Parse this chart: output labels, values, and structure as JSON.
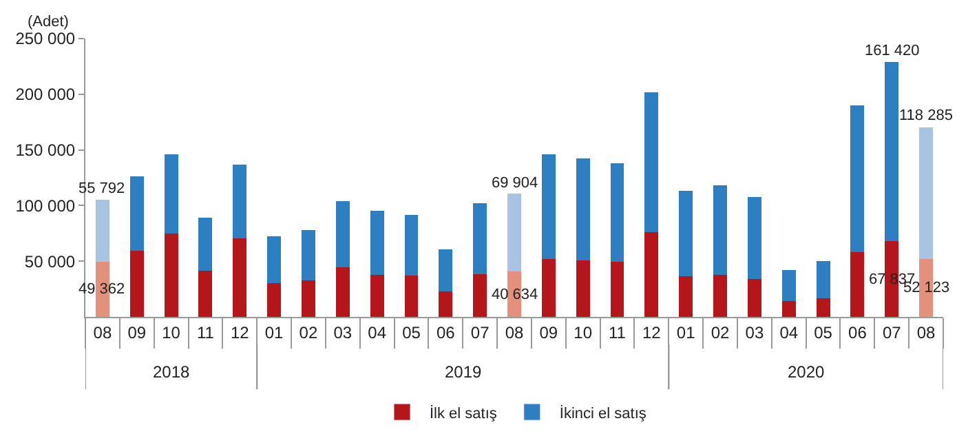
{
  "chart_data": {
    "type": "bar",
    "stacked": true,
    "ylabel": "(Adet)",
    "categories": [
      "08",
      "09",
      "10",
      "11",
      "12",
      "01",
      "02",
      "03",
      "04",
      "05",
      "06",
      "07",
      "08",
      "09",
      "10",
      "11",
      "12",
      "01",
      "02",
      "03",
      "04",
      "05",
      "06",
      "07",
      "08"
    ],
    "annotations": [
      "2018",
      "2019",
      "2020"
    ],
    "series": [
      {
        "name": "İlk el satış",
        "color": "#b5161c",
        "colors": [
          "#e3907d",
          "#b5161c",
          "#b5161c",
          "#b5161c",
          "#b5161c",
          "#b5161c",
          "#b5161c",
          "#b5161c",
          "#b5161c",
          "#b5161c",
          "#b5161c",
          "#b5161c",
          "#e3907d",
          "#b5161c",
          "#b5161c",
          "#b5161c",
          "#b5161c",
          "#b5161c",
          "#b5161c",
          "#b5161c",
          "#b5161c",
          "#b5161c",
          "#b5161c",
          "#b5161c",
          "#e3907d"
        ],
        "values": [
          49362,
          59400,
          74700,
          41200,
          70300,
          30300,
          33100,
          44400,
          37600,
          37200,
          22600,
          38400,
          40634,
          51700,
          50500,
          49300,
          75900,
          36300,
          37600,
          33900,
          14500,
          16600,
          58200,
          67837,
          52123
        ],
        "value_labels": [
          "49 362",
          null,
          null,
          null,
          null,
          null,
          null,
          null,
          null,
          null,
          null,
          null,
          "40 634",
          null,
          null,
          null,
          null,
          null,
          null,
          null,
          null,
          null,
          null,
          "67 837",
          "52 123"
        ]
      },
      {
        "name": "İkinci el satış",
        "color": "#2e7fc2",
        "colors": [
          "#a9c3e3",
          "#2e7fc2",
          "#2e7fc2",
          "#2e7fc2",
          "#2e7fc2",
          "#2e7fc2",
          "#2e7fc2",
          "#2e7fc2",
          "#2e7fc2",
          "#2e7fc2",
          "#2e7fc2",
          "#2e7fc2",
          "#a9c3e3",
          "#2e7fc2",
          "#2e7fc2",
          "#2e7fc2",
          "#2e7fc2",
          "#2e7fc2",
          "#2e7fc2",
          "#2e7fc2",
          "#2e7fc2",
          "#2e7fc2",
          "#2e7fc2",
          "#2e7fc2",
          "#a9c3e3"
        ],
        "values": [
          55792,
          66600,
          71100,
          48100,
          66200,
          42000,
          44800,
          59800,
          57700,
          54500,
          38000,
          63800,
          69904,
          94100,
          92100,
          88400,
          125600,
          77200,
          80700,
          73900,
          27500,
          33500,
          131600,
          161420,
          118285
        ],
        "value_labels": [
          "55 792",
          null,
          null,
          null,
          null,
          null,
          null,
          null,
          null,
          null,
          null,
          null,
          "69 904",
          null,
          null,
          null,
          null,
          null,
          null,
          null,
          null,
          null,
          null,
          "161 420",
          "118 285"
        ]
      }
    ],
    "ylim": [
      0,
      250000
    ],
    "yticks": [
      {
        "value": 50000,
        "label": "50 000"
      },
      {
        "value": 100000,
        "label": "100 000"
      },
      {
        "value": 150000,
        "label": "150 000"
      },
      {
        "value": 200000,
        "label": "200 000"
      },
      {
        "value": 250000,
        "label": "250 000"
      }
    ],
    "legend": "bottom"
  }
}
